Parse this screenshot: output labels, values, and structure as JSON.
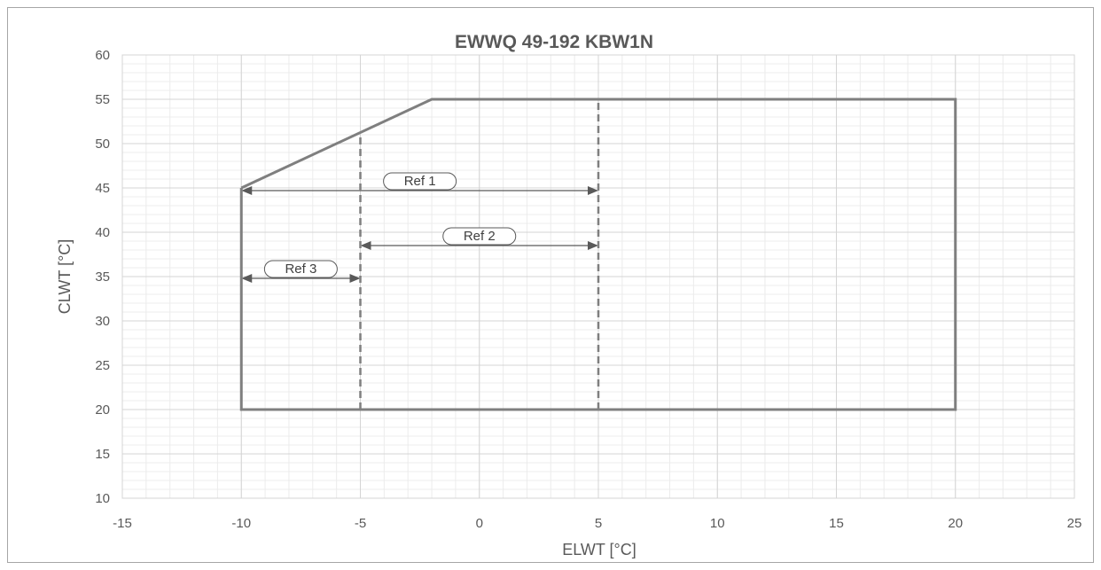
{
  "chart_data": {
    "type": "line",
    "title": "EWWQ 49-192 KBW1N",
    "xlabel": "ELWT [°C]",
    "ylabel": "CLWT [°C]",
    "xlim": [
      -15,
      25
    ],
    "ylim": [
      10,
      60
    ],
    "x_major_step": 5,
    "y_major_step": 5,
    "x_minor_step": 1,
    "y_minor_step": 1,
    "grid": true,
    "x_ticks": [
      "-15",
      "-10",
      "-5",
      "0",
      "5",
      "10",
      "15",
      "20",
      "25"
    ],
    "y_ticks": [
      "10",
      "15",
      "20",
      "25",
      "30",
      "35",
      "40",
      "45",
      "50",
      "55",
      "60"
    ],
    "series": [
      {
        "style": "solid",
        "color": "#7f7f7f",
        "x": [
          -10,
          -2,
          20,
          20,
          -10,
          -10
        ],
        "y": [
          45,
          55,
          55,
          20,
          20,
          45
        ]
      }
    ],
    "dividers": [
      {
        "x": -5,
        "y_from": 20,
        "y_to": 51.25,
        "style": "dashed"
      },
      {
        "x": 5,
        "y_from": 20,
        "y_to": 55,
        "style": "dashed"
      }
    ],
    "annotations": [
      {
        "label": "Ref 1",
        "x_from": -10,
        "x_to": 5,
        "y": 44.7
      },
      {
        "label": "Ref 2",
        "x_from": -5,
        "x_to": 5,
        "y": 38.5
      },
      {
        "label": "Ref 3",
        "x_from": -10,
        "x_to": -5,
        "y": 34.8
      }
    ]
  }
}
